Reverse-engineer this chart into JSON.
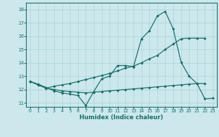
{
  "xlabel": "Humidex (Indice chaleur)",
  "bg_color": "#cce8ec",
  "line_color": "#1a6e6a",
  "grid_color": "#aad0d4",
  "xlim": [
    -0.5,
    23.5
  ],
  "ylim": [
    10.7,
    18.5
  ],
  "xticks": [
    0,
    1,
    2,
    3,
    4,
    5,
    6,
    7,
    8,
    9,
    10,
    11,
    12,
    13,
    14,
    15,
    16,
    17,
    18,
    19,
    20,
    21,
    22,
    23
  ],
  "yticks": [
    11,
    12,
    13,
    14,
    15,
    16,
    17,
    18
  ],
  "line1_x": [
    0,
    1,
    2,
    3,
    4,
    5,
    6,
    7,
    8,
    9,
    10,
    11,
    12,
    13,
    14,
    15,
    16,
    17,
    18,
    19,
    20,
    21,
    22
  ],
  "line1_y": [
    12.6,
    12.4,
    12.15,
    11.9,
    11.75,
    11.65,
    11.55,
    10.8,
    11.85,
    12.8,
    13.0,
    13.8,
    13.8,
    13.7,
    15.8,
    16.4,
    17.5,
    17.85,
    16.55,
    14.05,
    13.0,
    12.45,
    12.45
  ],
  "line2_x": [
    0,
    1,
    2,
    3,
    4,
    5,
    6,
    7,
    8,
    9,
    10,
    11,
    12,
    13,
    14,
    15,
    16,
    17,
    18,
    19,
    20,
    21,
    22
  ],
  "line2_y": [
    12.6,
    12.35,
    12.1,
    12.25,
    12.35,
    12.45,
    12.6,
    12.75,
    12.9,
    13.05,
    13.2,
    13.4,
    13.6,
    13.75,
    14.0,
    14.3,
    14.55,
    15.0,
    15.4,
    15.8,
    15.85,
    15.85,
    15.85
  ],
  "line3_x": [
    0,
    1,
    2,
    3,
    4,
    5,
    6,
    7,
    8,
    9,
    10,
    11,
    12,
    13,
    14,
    15,
    16,
    17,
    18,
    19,
    20,
    21,
    22,
    23
  ],
  "line3_y": [
    12.6,
    12.35,
    12.1,
    12.0,
    11.9,
    11.85,
    11.8,
    11.75,
    11.8,
    11.85,
    11.9,
    11.95,
    12.0,
    12.05,
    12.1,
    12.15,
    12.2,
    12.25,
    12.3,
    12.35,
    12.4,
    12.45,
    11.3,
    11.35
  ]
}
